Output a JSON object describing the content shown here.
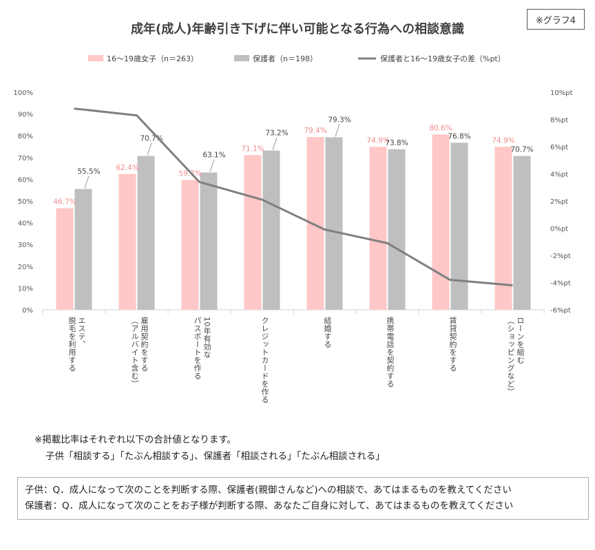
{
  "badge": "※グラフ4",
  "chart_data": {
    "type": "bar",
    "title": "成年(成人)年齢引き下げに伴い可能となる行為への相談意識",
    "categories": [
      [
        "エステ、",
        "脱毛を利用する"
      ],
      [
        "雇用契約をする",
        "（アルバイト含む）"
      ],
      [
        "10年有効な",
        "パスポートを作る"
      ],
      [
        "クレジットカードを作る"
      ],
      [
        "結婚する"
      ],
      [
        "携帯電話を契約する"
      ],
      [
        "賃貸契約をする"
      ],
      [
        "ローンを組む",
        "（ショッピングなど）"
      ]
    ],
    "series": [
      {
        "name": "16～19歳女子（n＝263）",
        "type": "bar",
        "color": "#ffc7c7",
        "label_color": "#f28c8c",
        "values": [
          46.7,
          62.4,
          59.7,
          71.1,
          79.4,
          74.9,
          80.6,
          74.9
        ],
        "labels": [
          "46.7%",
          "62.4%",
          "59.7%",
          "71.1%",
          "79.4%",
          "74.9%",
          "80.6%",
          "74.9%"
        ]
      },
      {
        "name": "保護者（n＝198）",
        "type": "bar",
        "color": "#bfbfbf",
        "label_color": "#444444",
        "values": [
          55.5,
          70.7,
          63.1,
          73.2,
          79.3,
          73.8,
          76.8,
          70.7
        ],
        "labels": [
          "55.5%",
          "70.7%",
          "63.1%",
          "73.2%",
          "79.3%",
          "73.8%",
          "76.8%",
          "70.7%"
        ]
      },
      {
        "name": "保護者と16～19歳女子の差（%pt）",
        "type": "line",
        "axis": "right",
        "color": "#7f7f7f",
        "values": [
          8.8,
          8.3,
          3.4,
          2.1,
          -0.1,
          -1.1,
          -3.8,
          -4.2
        ]
      }
    ],
    "y_left": {
      "range": [
        0,
        100
      ],
      "ticks": [
        "0%",
        "10%",
        "20%",
        "30%",
        "40%",
        "50%",
        "60%",
        "70%",
        "80%",
        "90%",
        "100%"
      ]
    },
    "y_right": {
      "range": [
        -6,
        10
      ],
      "ticks": [
        "-6%pt",
        "-4%pt",
        "-2%pt",
        "0%pt",
        "2%pt",
        "4%pt",
        "6%pt",
        "8%pt",
        "10%pt"
      ]
    },
    "legend_position": "top",
    "grid": false
  },
  "note": {
    "line1": "※掲載比率はそれぞれ以下の合計値となります。",
    "line2": "子供「相談する」「たぶん相談する」、保護者「相談される」「たぶん相談される」"
  },
  "questions": {
    "child": "子供：Q．成人になって次のことを判断する際、保護者(親御さんなど)への相談で、あてはまるものを教えてください",
    "parent": "保護者：Q．成人になって次のことをお子様が判断する際、あなたご自身に対して、あてはまるものを教えてください"
  }
}
